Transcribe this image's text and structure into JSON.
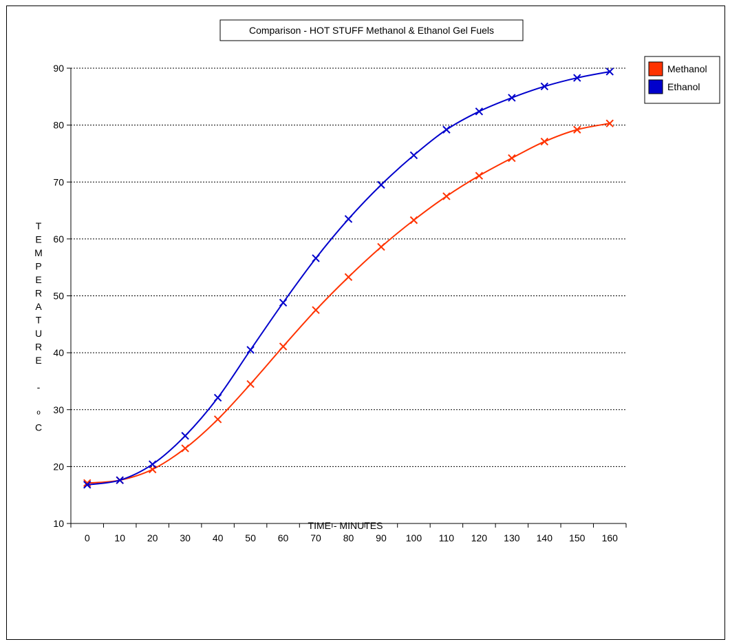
{
  "chart_data": {
    "type": "line",
    "title": "Comparison - HOT STUFF Methanol & Ethanol Gel Fuels",
    "xlabel": "TIME - MINUTES",
    "ylabel": "TEMPERATURE - °C",
    "ylabel_chars": [
      "T",
      "E",
      "M",
      "P",
      "E",
      "R",
      "A",
      "T",
      "U",
      "R",
      "E",
      "",
      "-",
      "",
      "º",
      "C"
    ],
    "x": [
      0,
      10,
      20,
      30,
      40,
      50,
      60,
      70,
      80,
      90,
      100,
      110,
      120,
      130,
      140,
      150,
      160
    ],
    "xticks": [
      "0",
      "10",
      "20",
      "30",
      "40",
      "50",
      "60",
      "70",
      "80",
      "90",
      "100",
      "110",
      "120",
      "130",
      "140",
      "150",
      "160"
    ],
    "yticks": [
      "10",
      "20",
      "30",
      "40",
      "50",
      "60",
      "70",
      "80",
      "90"
    ],
    "ylim": [
      10,
      90
    ],
    "grid": true,
    "legend_position": "top-right",
    "marker": "x",
    "series": [
      {
        "name": "Methanol",
        "color": "#ff3300",
        "values": [
          17.1,
          17.6,
          19.5,
          23.2,
          28.3,
          34.5,
          41.1,
          47.5,
          53.3,
          58.6,
          63.3,
          67.5,
          71.1,
          74.2,
          77.1,
          79.2,
          80.3
        ]
      },
      {
        "name": "Ethanol",
        "color": "#0000cc",
        "values": [
          16.8,
          17.6,
          20.4,
          25.4,
          32.1,
          40.5,
          48.8,
          56.6,
          63.5,
          69.5,
          74.7,
          79.2,
          82.4,
          84.8,
          86.8,
          88.3,
          89.4
        ]
      }
    ]
  }
}
